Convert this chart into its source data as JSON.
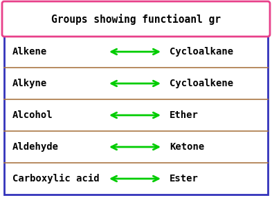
{
  "title": "Groups showing functioanl gr",
  "title_border_color": "#e8408a",
  "table_border_color": "#3333bb",
  "row_divider_color": "#aa7744",
  "arrow_color": "#00cc00",
  "text_color": "#000000",
  "bg_color": "#ffffff",
  "rows": [
    [
      "Alkene",
      "Cycloalkane"
    ],
    [
      "Alkyne",
      "Cycloalkene"
    ],
    [
      "Alcohol",
      "Ether"
    ],
    [
      "Aldehyde",
      "Ketone"
    ],
    [
      "Carboxylic acid",
      "Ester"
    ]
  ],
  "title_fontsize": 10.5,
  "row_fontsize": 10.0
}
